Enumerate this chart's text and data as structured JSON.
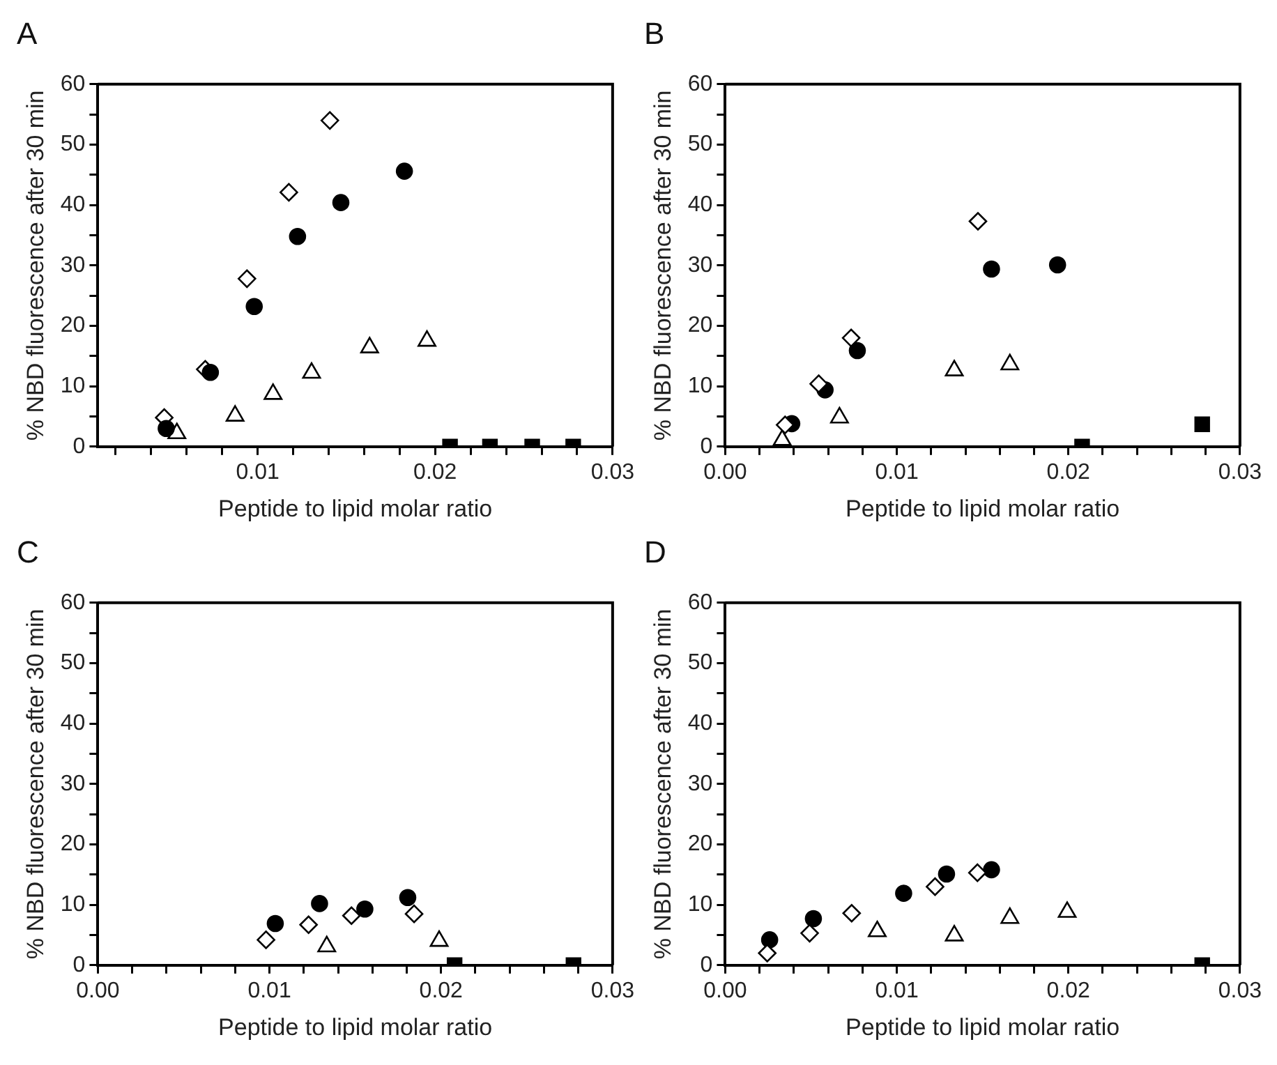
{
  "chart_data": [
    {
      "type": "scatter",
      "title": "A",
      "xlabel": "Peptide to lipid molar ratio",
      "ylabel": "% NBD fluorescence after 30 min",
      "xlim": [
        0.001,
        0.03
      ],
      "ylim": [
        0,
        60
      ],
      "xticks": [
        {
          "value": 0.002,
          "label": null
        },
        {
          "value": 0.004,
          "label": null
        },
        {
          "value": 0.006,
          "label": null
        },
        {
          "value": 0.008,
          "label": null
        },
        0.01,
        {
          "value": 0.012,
          "label": null
        },
        {
          "value": 0.014,
          "label": null
        },
        {
          "value": 0.016,
          "label": null
        },
        {
          "value": 0.018,
          "label": null
        },
        0.02,
        {
          "value": 0.022,
          "label": null
        },
        {
          "value": 0.024,
          "label": null
        },
        {
          "value": 0.026,
          "label": null
        },
        {
          "value": 0.028,
          "label": null
        },
        0.03
      ],
      "yticks": [
        0,
        {
          "value": 5,
          "label": null
        },
        10,
        {
          "value": 15,
          "label": null
        },
        20,
        {
          "value": 25,
          "label": null
        },
        30,
        {
          "value": 35,
          "label": null
        },
        40,
        {
          "value": 45,
          "label": null
        },
        50,
        {
          "value": 55,
          "label": null
        },
        60
      ],
      "grid": false,
      "legend": false,
      "series": [
        {
          "marker": "circle",
          "color": "#000000",
          "x": [
            0.00485,
            0.00734,
            0.00981,
            0.01225,
            0.01469,
            0.01827
          ],
          "values": [
            3.0,
            12.3,
            23.2,
            34.8,
            40.4,
            45.6
          ]
        },
        {
          "marker": "diamond",
          "color": "#000000",
          "x": [
            0.00474,
            0.00705,
            0.0094,
            0.01176,
            0.01407
          ],
          "values": [
            4.8,
            12.8,
            27.8,
            42.1,
            54.0
          ]
        },
        {
          "marker": "triangle",
          "color": "#000000",
          "x": [
            0.00545,
            0.00873,
            0.01087,
            0.01304,
            0.01631,
            0.01954
          ],
          "values": [
            2.2,
            5.1,
            8.7,
            12.2,
            16.4,
            17.5
          ]
        },
        {
          "marker": "square",
          "color": "#000000",
          "x": [
            0.02084,
            0.02309,
            0.02547,
            0.02778
          ],
          "values": [
            0,
            0,
            0,
            0
          ]
        }
      ]
    },
    {
      "type": "scatter",
      "title": "B",
      "xlabel": "Peptide to lipid molar ratio",
      "ylabel": "% NBD fluorescence after 30 min",
      "xlim": [
        0,
        0.03
      ],
      "ylim": [
        0,
        60
      ],
      "xticks": [
        {
          "value": 0,
          "label": "0.00"
        },
        {
          "value": 0.002,
          "label": null
        },
        {
          "value": 0.004,
          "label": null
        },
        {
          "value": 0.006,
          "label": null
        },
        {
          "value": 0.008,
          "label": null
        },
        0.01,
        {
          "value": 0.012,
          "label": null
        },
        {
          "value": 0.014,
          "label": null
        },
        {
          "value": 0.016,
          "label": null
        },
        {
          "value": 0.018,
          "label": null
        },
        0.02,
        {
          "value": 0.022,
          "label": null
        },
        {
          "value": 0.024,
          "label": null
        },
        {
          "value": 0.026,
          "label": null
        },
        {
          "value": 0.028,
          "label": null
        },
        0.03
      ],
      "yticks": [
        0,
        {
          "value": 5,
          "label": null
        },
        10,
        {
          "value": 15,
          "label": null
        },
        20,
        {
          "value": 25,
          "label": null
        },
        30,
        {
          "value": 35,
          "label": null
        },
        40,
        {
          "value": 45,
          "label": null
        },
        50,
        {
          "value": 55,
          "label": null
        },
        60
      ],
      "grid": false,
      "legend": false,
      "series": [
        {
          "marker": "diamond",
          "color": "#000000",
          "x": [
            0.00349,
            0.00545,
            0.00734,
            0.01473
          ],
          "values": [
            3.6,
            10.4,
            18.0,
            37.3
          ]
        },
        {
          "marker": "circle",
          "color": "#000000",
          "x": [
            0.00388,
            0.00582,
            0.0077,
            0.01552,
            0.01937
          ],
          "values": [
            3.8,
            9.4,
            15.9,
            29.4,
            30.1
          ]
        },
        {
          "marker": "triangle",
          "color": "#000000",
          "x": [
            0.00332,
            0.00666,
            0.01335,
            0.01659
          ],
          "values": [
            1.1,
            4.8,
            12.6,
            13.6
          ]
        },
        {
          "marker": "square",
          "color": "#000000",
          "x": [
            0.0208,
            0.0278
          ],
          "values": [
            0,
            3.7
          ]
        }
      ]
    },
    {
      "type": "scatter",
      "title": "C",
      "xlabel": "Peptide to lipid molar ratio",
      "ylabel": "% NBD fluorescence after 30 min",
      "xlim": [
        0,
        0.03
      ],
      "ylim": [
        0,
        60
      ],
      "xticks": [
        {
          "value": 0,
          "label": "0.00"
        },
        {
          "value": 0.002,
          "label": null
        },
        {
          "value": 0.004,
          "label": null
        },
        {
          "value": 0.006,
          "label": null
        },
        {
          "value": 0.008,
          "label": null
        },
        0.01,
        {
          "value": 0.012,
          "label": null
        },
        {
          "value": 0.014,
          "label": null
        },
        {
          "value": 0.016,
          "label": null
        },
        {
          "value": 0.018,
          "label": null
        },
        0.02,
        {
          "value": 0.022,
          "label": null
        },
        {
          "value": 0.024,
          "label": null
        },
        {
          "value": 0.026,
          "label": null
        },
        {
          "value": 0.028,
          "label": null
        },
        0.03
      ],
      "yticks": [
        0,
        {
          "value": 5,
          "label": null
        },
        10,
        {
          "value": 15,
          "label": null
        },
        20,
        {
          "value": 25,
          "label": null
        },
        30,
        {
          "value": 35,
          "label": null
        },
        40,
        {
          "value": 45,
          "label": null
        },
        50,
        {
          "value": 55,
          "label": null
        },
        60
      ],
      "grid": false,
      "legend": false,
      "series": [
        {
          "marker": "diamond",
          "color": "#000000",
          "x": [
            0.0098,
            0.01228,
            0.01478,
            0.01843
          ],
          "values": [
            4.2,
            6.7,
            8.2,
            8.5
          ]
        },
        {
          "marker": "circle",
          "color": "#000000",
          "x": [
            0.01034,
            0.01292,
            0.01556,
            0.01806
          ],
          "values": [
            6.9,
            10.2,
            9.3,
            11.2
          ]
        },
        {
          "marker": "triangle",
          "color": "#000000",
          "x": [
            0.01334,
            0.01989
          ],
          "values": [
            3.1,
            4.0
          ]
        },
        {
          "marker": "square",
          "color": "#000000",
          "x": [
            0.02079,
            0.02772
          ],
          "values": [
            0,
            0
          ]
        }
      ]
    },
    {
      "type": "scatter",
      "title": "D",
      "xlabel": "Peptide to lipid molar ratio",
      "ylabel": "% NBD fluorescence after 30 min",
      "xlim": [
        0,
        0.03
      ],
      "ylim": [
        0,
        60
      ],
      "xticks": [
        {
          "value": 0,
          "label": "0.00"
        },
        {
          "value": 0.002,
          "label": null
        },
        {
          "value": 0.004,
          "label": null
        },
        {
          "value": 0.006,
          "label": null
        },
        {
          "value": 0.008,
          "label": null
        },
        0.01,
        {
          "value": 0.012,
          "label": null
        },
        {
          "value": 0.014,
          "label": null
        },
        {
          "value": 0.016,
          "label": null
        },
        {
          "value": 0.018,
          "label": null
        },
        0.02,
        {
          "value": 0.022,
          "label": null
        },
        {
          "value": 0.024,
          "label": null
        },
        {
          "value": 0.026,
          "label": null
        },
        {
          "value": 0.028,
          "label": null
        },
        0.03
      ],
      "yticks": [
        0,
        {
          "value": 5,
          "label": null
        },
        10,
        {
          "value": 15,
          "label": null
        },
        20,
        {
          "value": 25,
          "label": null
        },
        30,
        {
          "value": 35,
          "label": null
        },
        40,
        {
          "value": 45,
          "label": null
        },
        50,
        {
          "value": 55,
          "label": null
        },
        60
      ],
      "grid": false,
      "legend": false,
      "series": [
        {
          "marker": "diamond",
          "color": "#000000",
          "x": [
            0.00245,
            0.00492,
            0.00737,
            0.01223,
            0.0147
          ],
          "values": [
            2.0,
            5.3,
            8.6,
            13.0,
            15.3
          ]
        },
        {
          "marker": "circle",
          "color": "#000000",
          "x": [
            0.00259,
            0.00514,
            0.0104,
            0.0129,
            0.01552
          ],
          "values": [
            4.2,
            7.7,
            11.9,
            15.1,
            15.8
          ]
        },
        {
          "marker": "triangle",
          "color": "#000000",
          "x": [
            0.00886,
            0.01335,
            0.01659,
            0.01993
          ],
          "values": [
            5.6,
            4.9,
            7.8,
            8.8
          ]
        },
        {
          "marker": "square",
          "color": "#000000",
          "x": [
            0.0278
          ],
          "values": [
            0
          ]
        }
      ]
    }
  ]
}
